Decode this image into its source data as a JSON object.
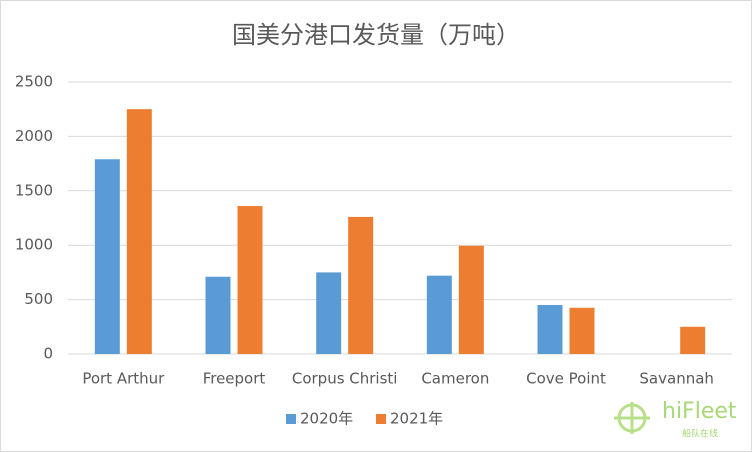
{
  "chart_data": {
    "type": "bar",
    "title": "国美分港口发货量（万吨）",
    "categories": [
      "Port Arthur",
      "Freeport",
      "Corpus Christi",
      "Cameron",
      "Cove Point",
      "Savannah"
    ],
    "series": [
      {
        "name": "2020年",
        "color": "#5b9bd5",
        "values": [
          1790,
          710,
          750,
          720,
          450,
          null
        ]
      },
      {
        "name": "2021年",
        "color": "#ed7d31",
        "values": [
          2250,
          1360,
          1260,
          995,
          425,
          250
        ]
      }
    ],
    "ylim": [
      0,
      2500
    ],
    "yticks": [
      0,
      500,
      1000,
      1500,
      2000,
      2500
    ],
    "grid": true,
    "legend": "bottom",
    "watermark": "hiFleet",
    "watermark_sub": "船队在线"
  }
}
